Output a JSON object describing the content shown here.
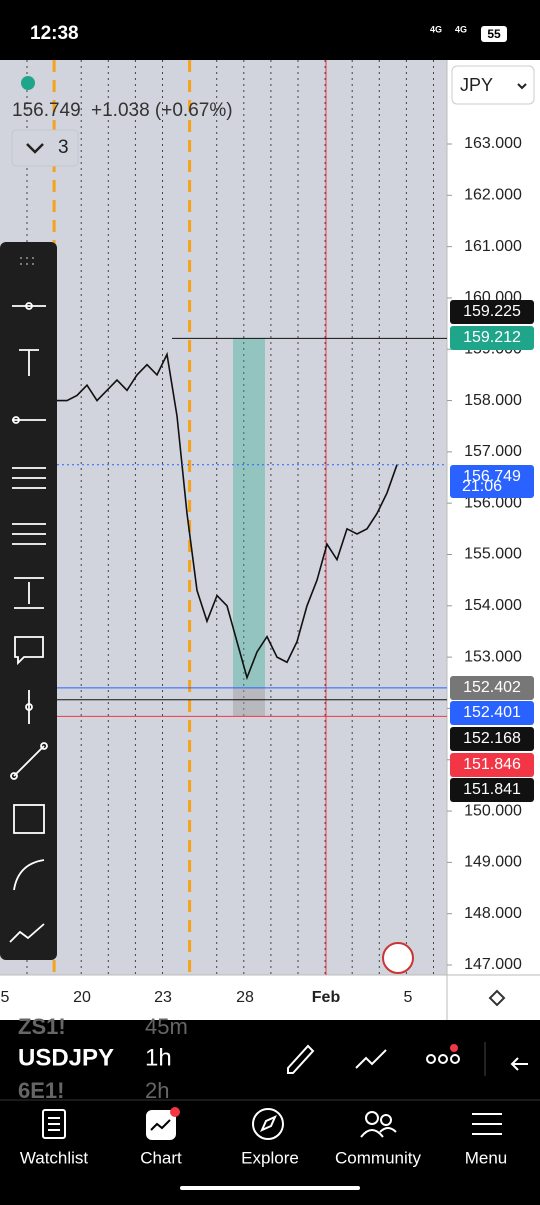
{
  "status_bar": {
    "time": "12:38",
    "network": [
      "4G",
      "4G"
    ],
    "battery": "55"
  },
  "header": {
    "price": "156.749",
    "change": "+1.038 (+0.67%)",
    "indicator_count": "3",
    "currency": "JPY"
  },
  "chart": {
    "type": "line",
    "ylim": [
      146.805,
      164.637
    ],
    "yticks": [
      {
        "value": 147,
        "label": "147.000"
      },
      {
        "value": 148,
        "label": "148.000"
      },
      {
        "value": 149,
        "label": "149.000"
      },
      {
        "value": 150,
        "label": "150.000"
      },
      {
        "value": 151,
        "label": "151.000"
      },
      {
        "value": 152,
        "label": "152.000"
      },
      {
        "value": 153,
        "label": "153.000"
      },
      {
        "value": 154,
        "label": "154.000"
      },
      {
        "value": 155,
        "label": "155.000"
      },
      {
        "value": 156,
        "label": "156.000"
      },
      {
        "value": 157,
        "label": "157.000"
      },
      {
        "value": 158,
        "label": "158.000"
      },
      {
        "value": 159,
        "label": "159.000"
      },
      {
        "value": 160,
        "label": "160.000"
      },
      {
        "value": 161,
        "label": "161.000"
      },
      {
        "value": 162,
        "label": "162.000"
      },
      {
        "value": 163,
        "label": "163.000"
      }
    ],
    "x_labels": [
      "5",
      "20",
      "23",
      "28",
      "Feb",
      "5"
    ],
    "values": [
      158.0,
      158.0,
      158.1,
      158.3,
      158.0,
      158.2,
      158.4,
      158.2,
      158.5,
      158.7,
      158.5,
      158.9,
      157.7,
      155.8,
      154.3,
      153.7,
      154.2,
      154.0,
      153.3,
      152.6,
      153.1,
      153.4,
      153.0,
      152.9,
      153.3,
      154.0,
      154.5,
      155.2,
      154.9,
      155.5,
      155.4,
      155.5,
      155.8,
      156.2,
      156.75
    ],
    "price_labels": [
      {
        "value": 159.225,
        "label": "159.225"
      },
      {
        "value": 159.212,
        "label": "159.212"
      },
      {
        "value": 156.749,
        "label": "156.749"
      },
      {
        "value": 152.402,
        "label": "152.402"
      },
      {
        "value": 152.401,
        "label": "152.401"
      },
      {
        "value": 152.168,
        "label": "152.168"
      },
      {
        "value": 151.846,
        "label": "151.846"
      },
      {
        "value": 151.841,
        "label": "151.841"
      }
    ],
    "countdown": "21:06"
  },
  "symbols": [
    {
      "name": "ZS1!",
      "interval": "45m"
    },
    {
      "name": "USDJPY",
      "interval": "1h"
    },
    {
      "name": "6E1!",
      "interval": "2h"
    }
  ],
  "nav": [
    "Watchlist",
    "Chart",
    "Explore",
    "Community",
    "Menu"
  ]
}
